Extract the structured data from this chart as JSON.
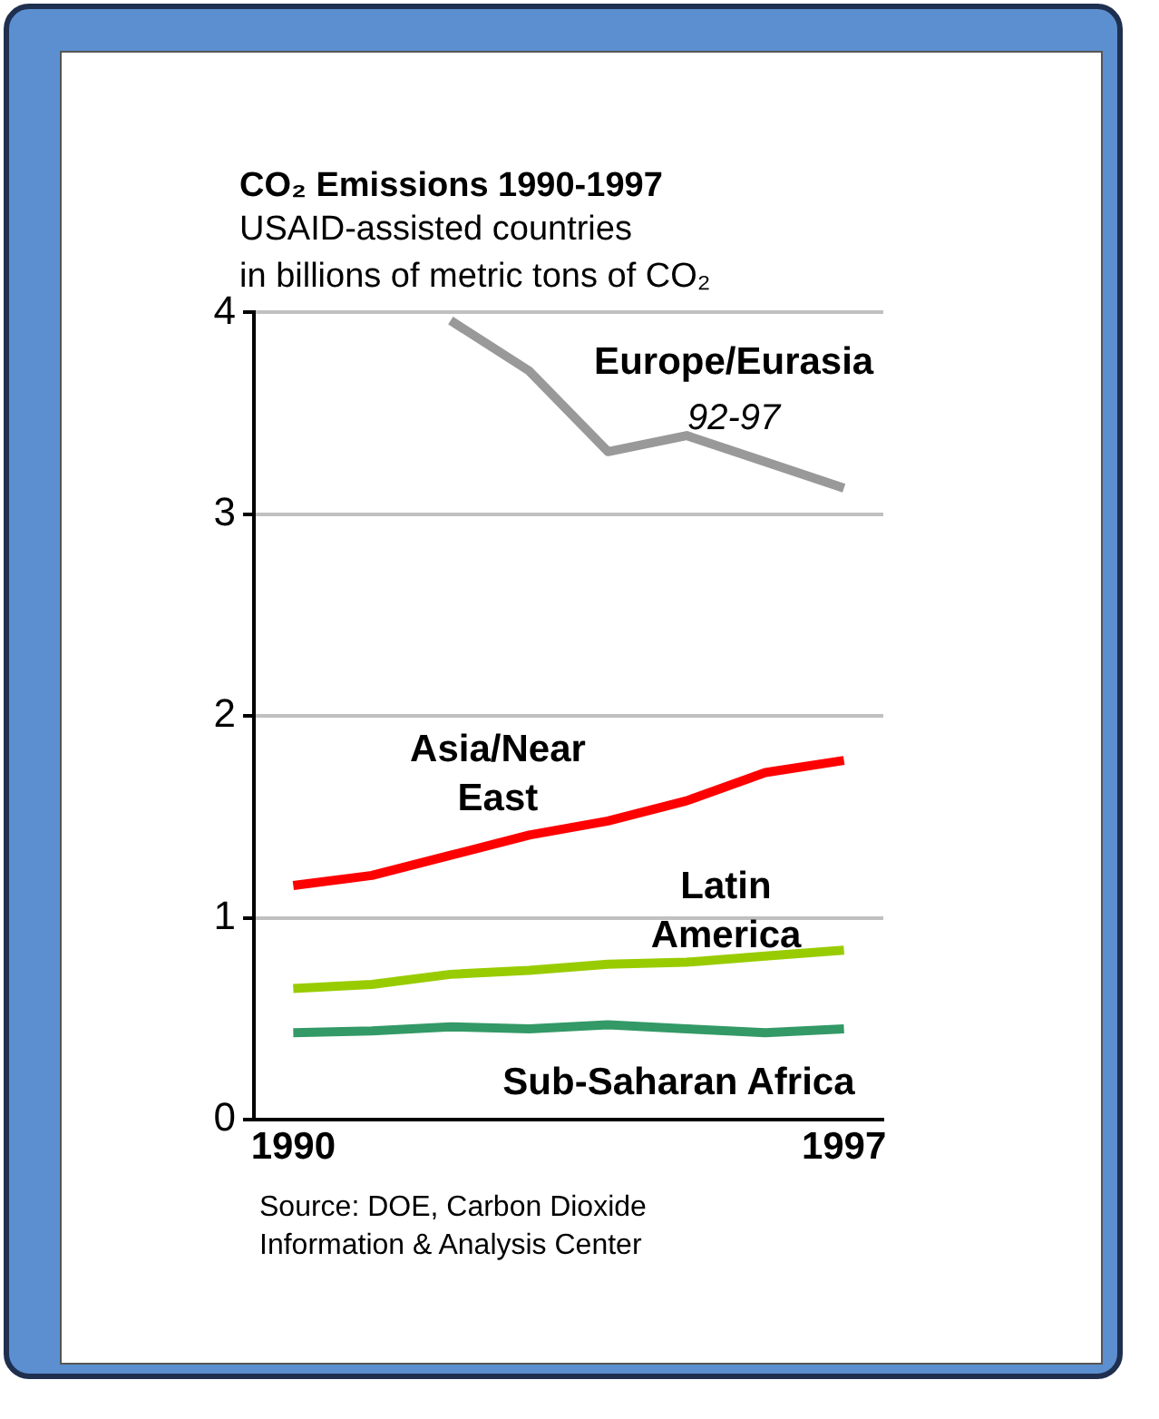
{
  "chart_data": {
    "type": "line",
    "title": "CO₂ Emissions 1990-1997",
    "subtitle": "USAID-assisted countries\nin billions of metric tons of CO₂",
    "categories": [
      "1990",
      null,
      null,
      null,
      null,
      null,
      null,
      "1997"
    ],
    "series": [
      {
        "name": "Europe/Eurasia",
        "color": "#999999",
        "values": [
          null,
          null,
          3.96,
          3.71,
          3.31,
          3.39,
          3.26,
          3.13
        ]
      },
      {
        "name": "Asia/Near East",
        "color": "#ff0000",
        "values": [
          1.16,
          1.21,
          1.31,
          1.41,
          1.48,
          1.58,
          1.72,
          1.78
        ]
      },
      {
        "name": "Latin America",
        "color": "#99cc00",
        "values": [
          0.65,
          0.67,
          0.72,
          0.74,
          0.77,
          0.78,
          0.81,
          0.84
        ]
      },
      {
        "name": "Sub-Saharan Africa",
        "color": "#339966",
        "values": [
          0.43,
          0.44,
          0.46,
          0.45,
          0.47,
          0.45,
          0.43,
          0.45
        ]
      }
    ],
    "ylim": [
      0,
      4
    ],
    "yticks": [
      0,
      1,
      2,
      3,
      4
    ],
    "grid": "y",
    "legend": false,
    "marker": "none",
    "line_style": "solid",
    "annotations": [
      "92-97",
      "Source: DOE, Carbon Dioxide\nInformation & Analysis Center"
    ]
  }
}
